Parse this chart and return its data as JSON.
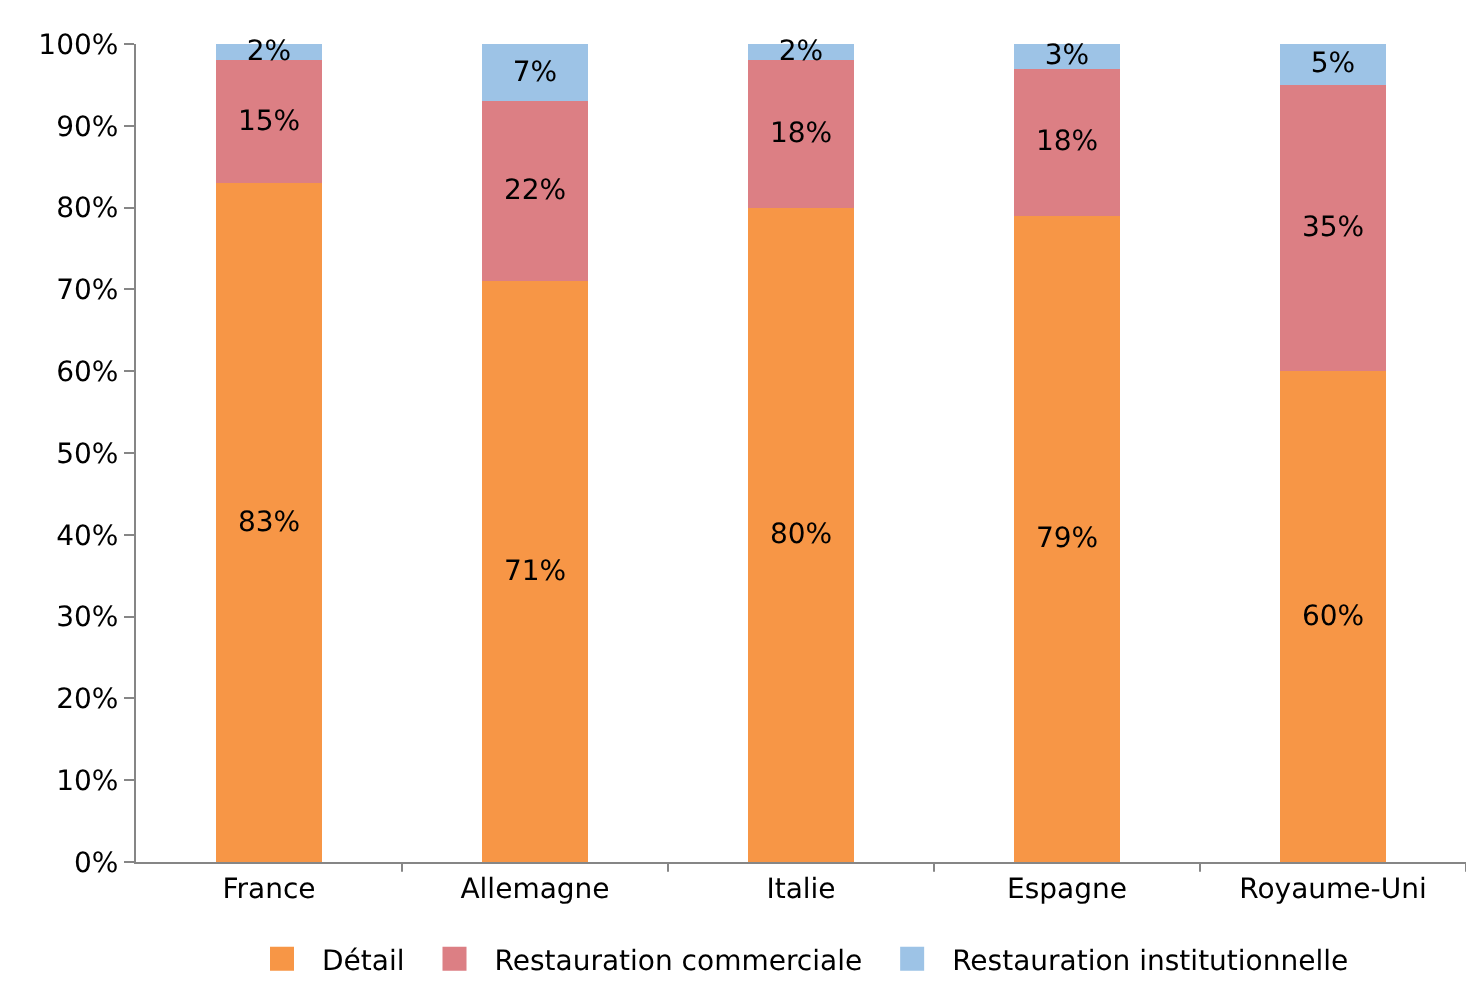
{
  "chart_data": {
    "type": "bar",
    "stacked": true,
    "categories": [
      "France",
      "Allemagne",
      "Italie",
      "Espagne",
      "Royaume-Uni"
    ],
    "series": [
      {
        "name": "Détail",
        "color": "#f79646",
        "values": [
          83,
          71,
          80,
          79,
          60
        ],
        "value_labels": [
          "83%",
          "71%",
          "80%",
          "79%",
          "60%"
        ]
      },
      {
        "name": "Restauration commerciale",
        "color": "#dc7f84",
        "values": [
          15,
          22,
          18,
          18,
          35
        ],
        "value_labels": [
          "15%",
          "22%",
          "18%",
          "18%",
          "35%"
        ]
      },
      {
        "name": "Restauration institutionnelle",
        "color": "#9dc3e6",
        "values": [
          2,
          7,
          2,
          3,
          5
        ],
        "value_labels": [
          "2%",
          "7%",
          "2%",
          "3%",
          "5%"
        ]
      }
    ],
    "ylim": [
      0,
      100
    ],
    "yticks": [
      {
        "value": 0,
        "label": "0%"
      },
      {
        "value": 10,
        "label": "10%"
      },
      {
        "value": 20,
        "label": "20%"
      },
      {
        "value": 30,
        "label": "30%"
      },
      {
        "value": 40,
        "label": "40%"
      },
      {
        "value": 50,
        "label": "50%"
      },
      {
        "value": 60,
        "label": "60%"
      },
      {
        "value": 70,
        "label": "70%"
      },
      {
        "value": 80,
        "label": "80%"
      },
      {
        "value": 90,
        "label": "90%"
      },
      {
        "value": 100,
        "label": "100%"
      }
    ],
    "grid": false,
    "legend": "bottom"
  }
}
